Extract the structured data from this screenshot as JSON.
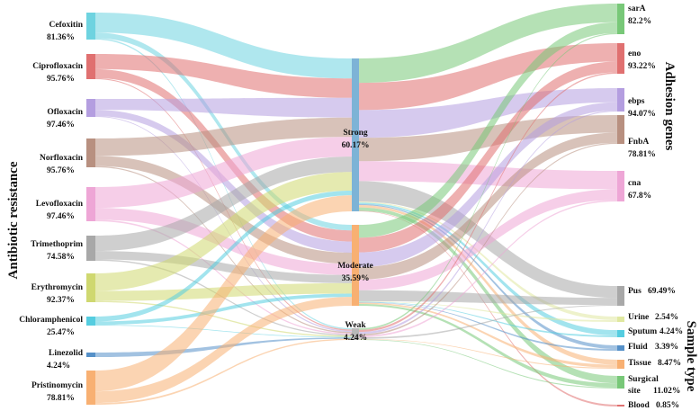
{
  "side_titles": {
    "left": "Antibiotic resistance",
    "right_top": "Adhesion genes",
    "right_bottom": "Sample type"
  },
  "antibiotics": [
    {
      "key": "cef",
      "name": "Cefoxitin",
      "pct": "81.36%",
      "color": "#6ed3e0"
    },
    {
      "key": "cip",
      "name": "Ciprofloxacin",
      "pct": "95.76%",
      "color": "#e07070"
    },
    {
      "key": "ofl",
      "name": "Ofloxacin",
      "pct": "97.46%",
      "color": "#b49ee0"
    },
    {
      "key": "nor",
      "name": "Norfloxacin",
      "pct": "95.76%",
      "color": "#b89080"
    },
    {
      "key": "lev",
      "name": "Levofloxacin",
      "pct": "97.46%",
      "color": "#eea6d6"
    },
    {
      "key": "tri",
      "name": "Trimethoprim",
      "pct": "74.58%",
      "color": "#a8a8a8"
    },
    {
      "key": "ery",
      "name": "Erythromycin",
      "pct": "92.37%",
      "color": "#cfd870"
    },
    {
      "key": "chl",
      "name": "Chloramphenicol",
      "pct": "25.47%",
      "color": "#55cde0"
    },
    {
      "key": "lin",
      "name": "Linezolid",
      "pct": "4.24%",
      "color": "#5590c8"
    },
    {
      "key": "pri",
      "name": "Pristinomycin",
      "pct": "78.81%",
      "color": "#f8b072"
    }
  ],
  "biofilm": [
    {
      "key": "strong",
      "name": "Strong",
      "pct": "60.17%",
      "color": "#7db3d6"
    },
    {
      "key": "moderate",
      "name": "Moderate",
      "pct": "35.59%",
      "color": "#f8b072"
    },
    {
      "key": "weak",
      "name": "Weak",
      "pct": "4.24%",
      "color": "#b8b8b8"
    }
  ],
  "genes": [
    {
      "key": "sarA",
      "name": "sarA",
      "pct": "82.2%",
      "color": "#78c878"
    },
    {
      "key": "eno",
      "name": "eno",
      "pct": "93.22%",
      "color": "#e07070"
    },
    {
      "key": "ebps",
      "name": "ebps",
      "pct": "94.07%",
      "color": "#b49ee0"
    },
    {
      "key": "fnbA",
      "name": "FnbA",
      "pct": "78.81%",
      "color": "#b89080"
    },
    {
      "key": "cna",
      "name": "cna",
      "pct": "67.8%",
      "color": "#eea6d6"
    }
  ],
  "samples": [
    {
      "key": "pus",
      "name": "Pus",
      "pct": "69.49%",
      "color": "#a8a8a8"
    },
    {
      "key": "urine",
      "name": "Urine",
      "pct": "2.54%",
      "color": "#e0e8a0"
    },
    {
      "key": "sputum",
      "name": "Sputum",
      "pct": "4.24%",
      "color": "#55cde0"
    },
    {
      "key": "fluid",
      "name": "Fluid",
      "pct": "3.39%",
      "color": "#5590c8"
    },
    {
      "key": "tissue",
      "name": "Tissue",
      "pct": "8.47%",
      "color": "#f8b072"
    },
    {
      "key": "surgical",
      "name": "Surgical site",
      "pct": "11.02%",
      "color": "#78c878"
    },
    {
      "key": "blood",
      "name": "Blood",
      "pct": "0.85%",
      "color": "#e07070"
    }
  ],
  "flows_left": [
    {
      "from": "cef",
      "to": "strong",
      "value": 60
    },
    {
      "from": "cef",
      "to": "moderate",
      "value": 17
    },
    {
      "from": "cef",
      "to": "weak",
      "value": 4
    },
    {
      "from": "cip",
      "to": "strong",
      "value": 58
    },
    {
      "from": "cip",
      "to": "moderate",
      "value": 34
    },
    {
      "from": "cip",
      "to": "weak",
      "value": 4
    },
    {
      "from": "ofl",
      "to": "strong",
      "value": 59
    },
    {
      "from": "ofl",
      "to": "moderate",
      "value": 34
    },
    {
      "from": "ofl",
      "to": "weak",
      "value": 4
    },
    {
      "from": "nor",
      "to": "strong",
      "value": 58
    },
    {
      "from": "nor",
      "to": "moderate",
      "value": 34
    },
    {
      "from": "nor",
      "to": "weak",
      "value": 4
    },
    {
      "from": "lev",
      "to": "strong",
      "value": 59
    },
    {
      "from": "lev",
      "to": "moderate",
      "value": 34
    },
    {
      "from": "lev",
      "to": "weak",
      "value": 4
    },
    {
      "from": "tri",
      "to": "strong",
      "value": 46
    },
    {
      "from": "tri",
      "to": "moderate",
      "value": 25
    },
    {
      "from": "tri",
      "to": "weak",
      "value": 4
    },
    {
      "from": "ery",
      "to": "strong",
      "value": 56
    },
    {
      "from": "ery",
      "to": "moderate",
      "value": 32
    },
    {
      "from": "ery",
      "to": "weak",
      "value": 4
    },
    {
      "from": "chl",
      "to": "strong",
      "value": 14
    },
    {
      "from": "chl",
      "to": "moderate",
      "value": 10
    },
    {
      "from": "chl",
      "to": "weak",
      "value": 2
    },
    {
      "from": "lin",
      "to": "weak",
      "value": 4
    },
    {
      "from": "pri",
      "to": "strong",
      "value": 48
    },
    {
      "from": "pri",
      "to": "moderate",
      "value": 27
    },
    {
      "from": "pri",
      "to": "weak",
      "value": 4
    }
  ],
  "flows_right": [
    {
      "from": "strong",
      "to": "sarA",
      "value": 50
    },
    {
      "from": "strong",
      "to": "eno",
      "value": 56
    },
    {
      "from": "strong",
      "to": "ebps",
      "value": 57
    },
    {
      "from": "strong",
      "to": "fnbA",
      "value": 48
    },
    {
      "from": "strong",
      "to": "cna",
      "value": 41
    },
    {
      "from": "strong",
      "to": "pus",
      "value": 42
    },
    {
      "from": "strong",
      "to": "urine",
      "value": 2
    },
    {
      "from": "strong",
      "to": "sputum",
      "value": 3
    },
    {
      "from": "strong",
      "to": "fluid",
      "value": 2
    },
    {
      "from": "strong",
      "to": "tissue",
      "value": 5
    },
    {
      "from": "strong",
      "to": "surgical",
      "value": 7
    },
    {
      "from": "strong",
      "to": "blood",
      "value": 1
    },
    {
      "from": "moderate",
      "to": "sarA",
      "value": 29
    },
    {
      "from": "moderate",
      "to": "eno",
      "value": 33
    },
    {
      "from": "moderate",
      "to": "ebps",
      "value": 33
    },
    {
      "from": "moderate",
      "to": "fnbA",
      "value": 28
    },
    {
      "from": "moderate",
      "to": "cna",
      "value": 24
    },
    {
      "from": "moderate",
      "to": "pus",
      "value": 25
    },
    {
      "from": "moderate",
      "to": "urine",
      "value": 1
    },
    {
      "from": "moderate",
      "to": "sputum",
      "value": 1
    },
    {
      "from": "moderate",
      "to": "fluid",
      "value": 1
    },
    {
      "from": "moderate",
      "to": "tissue",
      "value": 3
    },
    {
      "from": "moderate",
      "to": "surgical",
      "value": 4
    },
    {
      "from": "weak",
      "to": "sarA",
      "value": 3
    },
    {
      "from": "weak",
      "to": "eno",
      "value": 4
    },
    {
      "from": "weak",
      "to": "ebps",
      "value": 4
    },
    {
      "from": "weak",
      "to": "fnbA",
      "value": 3
    },
    {
      "from": "weak",
      "to": "cna",
      "value": 3
    },
    {
      "from": "weak",
      "to": "pus",
      "value": 3
    },
    {
      "from": "weak",
      "to": "tissue",
      "value": 1
    },
    {
      "from": "weak",
      "to": "surgical",
      "value": 1
    }
  ]
}
